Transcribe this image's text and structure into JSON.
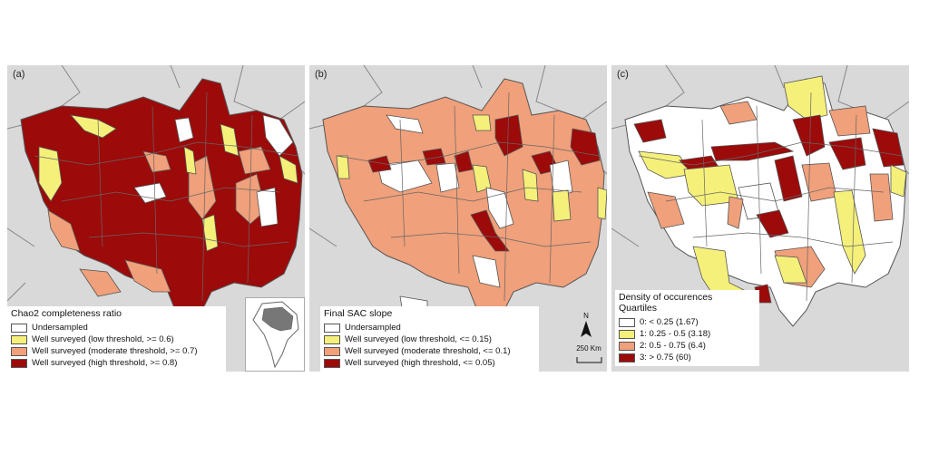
{
  "colors": {
    "undersampled": "#ffffff",
    "low": "#f5f07a",
    "moderate": "#f0a07a",
    "high": "#9c0a0a",
    "background": "#d9d9d9",
    "border": "#555555"
  },
  "panels": [
    {
      "label": "(a)",
      "legend_title": "Chao2 completeness ratio",
      "legend_items": [
        {
          "label": "Undersampled",
          "color": "#ffffff"
        },
        {
          "label": "Well surveyed (low threshold, >= 0.6)",
          "color": "#f5f07a"
        },
        {
          "label": "Well surveyed (moderate threshold, >= 0.7)",
          "color": "#f0a07a"
        },
        {
          "label": "Well surveyed (high threshold, >= 0.8)",
          "color": "#9c0a0a"
        }
      ],
      "dominant_class": "high"
    },
    {
      "label": "(b)",
      "legend_title": "Final SAC slope",
      "legend_items": [
        {
          "label": "Undersampled",
          "color": "#ffffff"
        },
        {
          "label": "Well surveyed (low threshold, <= 0.15)",
          "color": "#f5f07a"
        },
        {
          "label": "Well surveyed (moderate threshold, <= 0.1)",
          "color": "#f0a07a"
        },
        {
          "label": "Well surveyed (high threshold, <= 0.05)",
          "color": "#9c0a0a"
        }
      ],
      "dominant_class": "moderate",
      "north_label": "N",
      "scale_label": "250 Km"
    },
    {
      "label": "(c)",
      "legend_title": "Density of occurences",
      "legend_subtitle": "Quartiles",
      "legend_items": [
        {
          "label": "0: < 0.25 (1.67)",
          "color": "#ffffff"
        },
        {
          "label": "1: 0.25 - 0.5 (3.18)",
          "color": "#f5f07a"
        },
        {
          "label": "2: 0.5 - 0.75 (6.4)",
          "color": "#f0a07a"
        },
        {
          "label": "3: > 0.75 (60)",
          "color": "#9c0a0a"
        }
      ],
      "dominant_class": "mixed"
    }
  ]
}
